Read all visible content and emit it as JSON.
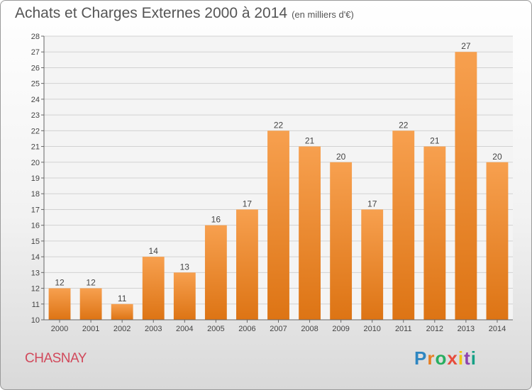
{
  "header": {
    "title": "Achats et Charges Externes 2000 à 2014",
    "subtitle": "(en milliers d'€)"
  },
  "footer": {
    "city": "CHASNAY",
    "brand": "Proxiti"
  },
  "colors": {
    "bar_light": "#f7a04f",
    "bar_dark": "#dd7414",
    "title": "#555555",
    "city": "#d1495b"
  },
  "chart_data": {
    "type": "bar",
    "title": "Achats et Charges Externes 2000 à 2014",
    "subtitle": "(en milliers d'€)",
    "xlabel": "",
    "ylabel": "",
    "categories": [
      "2000",
      "2001",
      "2002",
      "2003",
      "2004",
      "2005",
      "2006",
      "2007",
      "2008",
      "2009",
      "2010",
      "2011",
      "2012",
      "2013",
      "2014"
    ],
    "values": [
      12,
      12,
      11,
      14,
      13,
      16,
      17,
      22,
      21,
      20,
      17,
      22,
      21,
      27,
      20
    ],
    "ylim": [
      10,
      28
    ],
    "yticks": [
      10,
      11,
      12,
      13,
      14,
      15,
      16,
      17,
      18,
      19,
      20,
      21,
      22,
      23,
      24,
      25,
      26,
      27,
      28
    ],
    "grid": true,
    "data_labels": true
  }
}
